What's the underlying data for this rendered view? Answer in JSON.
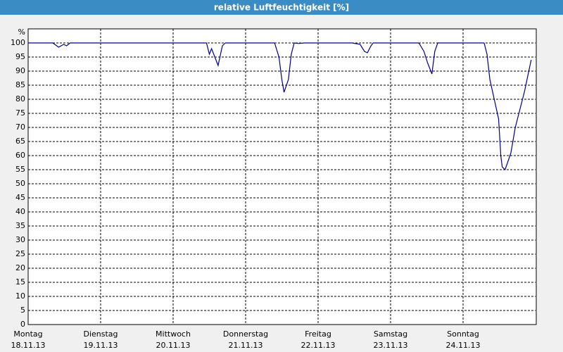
{
  "chart_data": {
    "type": "line",
    "title": "relative Luftfeuchtigkeit [%]",
    "y_unit": "%",
    "xlim": [
      0,
      7
    ],
    "ylim": [
      0,
      100
    ],
    "yticks": [
      0,
      5,
      10,
      15,
      20,
      25,
      30,
      35,
      40,
      45,
      50,
      55,
      60,
      65,
      70,
      75,
      80,
      85,
      90,
      95,
      100
    ],
    "xticks": [
      {
        "value": 0,
        "label": "Montag",
        "date": "18.11.13"
      },
      {
        "value": 1,
        "label": "Dienstag",
        "date": "19.11.13"
      },
      {
        "value": 2,
        "label": "Mittwoch",
        "date": "20.11.13"
      },
      {
        "value": 3,
        "label": "Donnerstag",
        "date": "21.11.13"
      },
      {
        "value": 4,
        "label": "Freitag",
        "date": "22.11.13"
      },
      {
        "value": 5,
        "label": "Samstag",
        "date": "23.11.13"
      },
      {
        "value": 6,
        "label": "Sonntag",
        "date": "24.11.13"
      }
    ],
    "grid": true,
    "color": "#00008b",
    "x": [
      0,
      0.34,
      0.42,
      0.49,
      0.53,
      0.58,
      2.46,
      2.5,
      2.53,
      2.62,
      2.68,
      2.72,
      3.4,
      3.46,
      3.5,
      3.53,
      3.59,
      3.63,
      3.67,
      3.73,
      3.81,
      4.47,
      4.58,
      4.64,
      4.68,
      4.73,
      4.76,
      5.39,
      5.46,
      5.51,
      5.57,
      5.61,
      5.65,
      6.29,
      6.33,
      6.37,
      6.43,
      6.49,
      6.52,
      6.54,
      6.58,
      6.62,
      6.66,
      6.72,
      6.76,
      6.82,
      6.85,
      6.89,
      6.94
    ],
    "values": [
      100,
      100,
      98.5,
      99.5,
      99,
      100,
      100,
      96,
      98,
      92,
      99,
      100,
      100,
      95,
      87,
      82.5,
      87,
      96,
      100,
      99.8,
      100,
      100,
      99.5,
      97,
      96.5,
      99,
      100,
      100,
      97,
      93,
      89,
      97,
      100,
      100,
      96,
      87,
      80,
      73,
      60,
      56,
      55,
      58,
      61,
      70,
      74,
      80,
      83,
      88,
      94
    ]
  }
}
